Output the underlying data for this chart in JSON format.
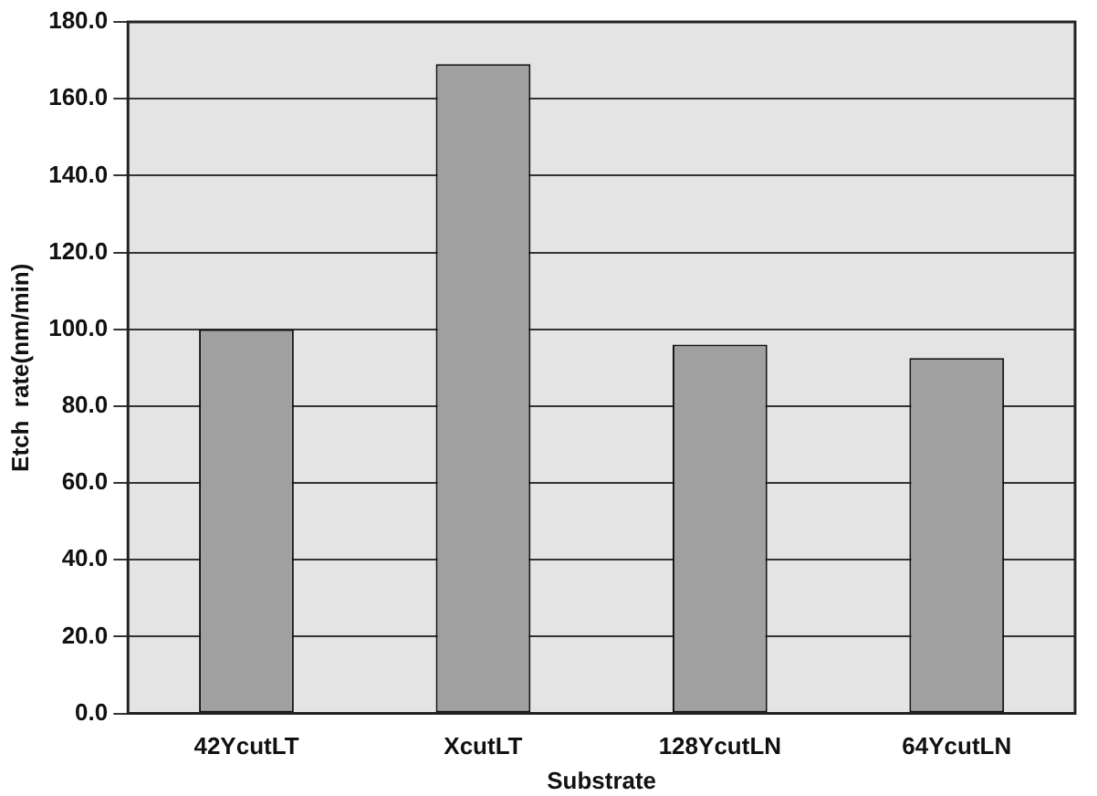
{
  "chart_data": {
    "type": "bar",
    "xlabel": "Substrate",
    "ylabel": "Etch  rate(nm/min)",
    "categories": [
      "42YcutLT",
      "XcutLT",
      "128YcutLN",
      "64YcutLN"
    ],
    "values": [
      100,
      169,
      96,
      92.5
    ],
    "color": "#a0a0a0",
    "ylim": [
      0,
      180
    ],
    "yticks": [
      {
        "value": 0,
        "label": "0.0"
      },
      {
        "value": 20,
        "label": "20.0"
      },
      {
        "value": 40,
        "label": "40.0"
      },
      {
        "value": 60,
        "label": "60.0"
      },
      {
        "value": 80,
        "label": "80.0"
      },
      {
        "value": 100,
        "label": "100.0"
      },
      {
        "value": 120,
        "label": "120.0"
      },
      {
        "value": 140,
        "label": "140.0"
      },
      {
        "value": 160,
        "label": "160.0"
      },
      {
        "value": 180,
        "label": "180.0"
      }
    ],
    "grid": "y",
    "legend": false
  }
}
